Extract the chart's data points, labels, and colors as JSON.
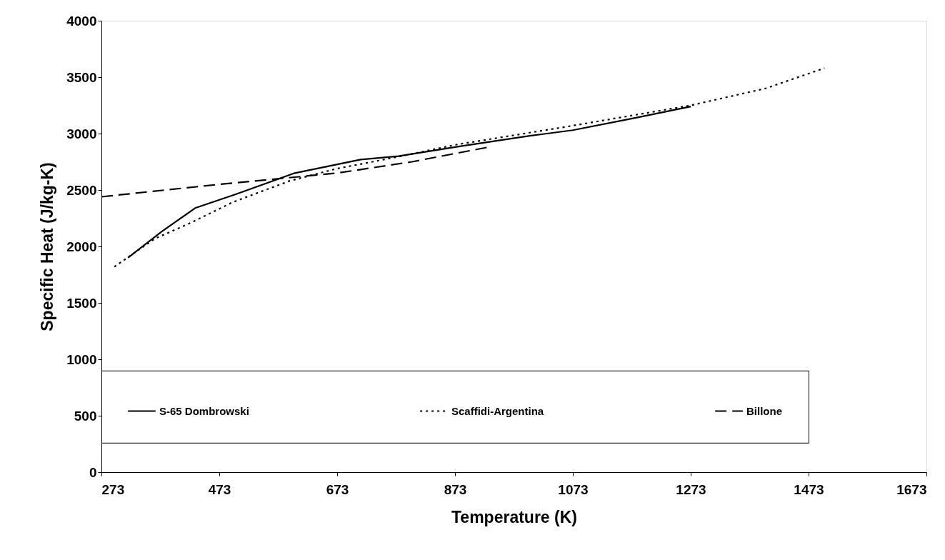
{
  "chart_data": {
    "type": "line",
    "xlabel": "Temperature (K)",
    "ylabel": "Specific Heat (J/kg-K)",
    "xlim": [
      273,
      1673
    ],
    "xticks": [
      273,
      473,
      673,
      873,
      {
        "value": 1073,
        "label": "1073"
      },
      {
        "value": 1273,
        "label": "1273"
      },
      {
        "value": 1473,
        "label": "1473"
      },
      {
        "value": 1673,
        "label": "1673"
      }
    ],
    "ylim": [
      0,
      4000
    ],
    "yticks": [
      0,
      500,
      {
        "value": 1000,
        "label": "1000"
      },
      {
        "value": 1500,
        "label": "1500"
      },
      {
        "value": 2000,
        "label": "2000"
      },
      {
        "value": 2500,
        "label": "2500"
      },
      {
        "value": 3000,
        "label": "3000"
      },
      {
        "value": 3500,
        "label": "3500"
      },
      {
        "value": 4000,
        "label": "4000"
      }
    ],
    "grid": false,
    "legend": "bottom",
    "marker": "none",
    "series": [
      {
        "name": "S-65 Dombrowski",
        "color": "#000000",
        "line_style": "solid",
        "x": [
          318,
          375,
          432,
          500,
          601,
          713,
          777,
          885,
          1000,
          1073,
          1180,
          1273
        ],
        "values": [
          1900,
          2130,
          2340,
          2460,
          2650,
          2770,
          2800,
          2890,
          2980,
          3030,
          3140,
          3240
        ]
      },
      {
        "name": "Scaffidi-Argentina",
        "color": "#000000",
        "line_style": "dotted",
        "x": [
          295,
          364,
          425,
          495,
          592,
          673,
          773,
          873,
          1073,
          1273,
          1400,
          1500
        ],
        "values": [
          1820,
          2070,
          2210,
          2390,
          2580,
          2690,
          2790,
          2900,
          3070,
          3250,
          3400,
          3580
        ]
      },
      {
        "name": "Billone",
        "color": "#000000",
        "line_style": "dashed",
        "x": [
          273,
          473,
          673,
          800,
          930
        ],
        "values": [
          2440,
          2550,
          2650,
          2750,
          2880
        ]
      }
    ]
  }
}
